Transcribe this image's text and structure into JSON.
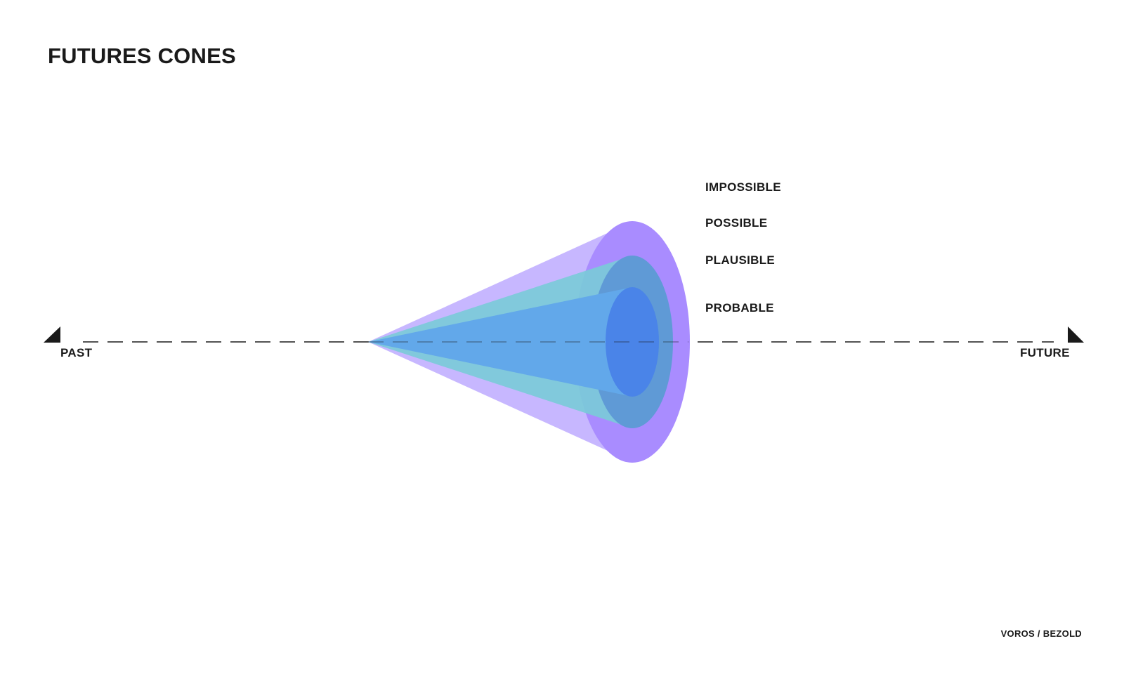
{
  "title": "FUTURES CONES",
  "cones": [
    {
      "label": "IMPOSSIBLE",
      "color": ""
    },
    {
      "label": "POSSIBLE",
      "color": "#a98cff"
    },
    {
      "label": "PLAUSIBLE",
      "color": "#6fc7d6"
    },
    {
      "label": "PROBABLE",
      "color": "#4f8fea"
    }
  ],
  "axis": {
    "past_label": "PAST",
    "future_label": "FUTURE",
    "line_color": "#1a1a1a"
  },
  "credit": "VOROS / BEZOLD"
}
